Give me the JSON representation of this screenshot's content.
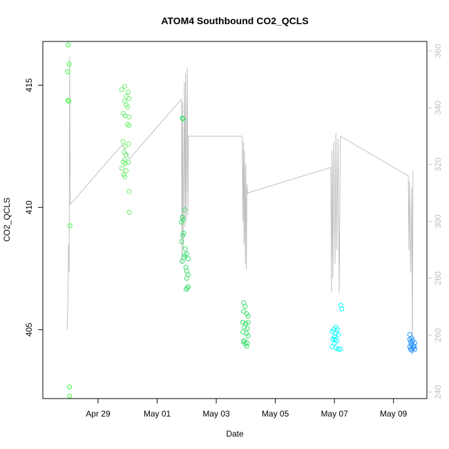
{
  "chart_data": {
    "type": "scatter",
    "title": "ATOM4 Southbound CO2_QCLS",
    "xlabel": "Date",
    "ylabel": "CO2_QCLS",
    "x_ticks": [
      {
        "day": 29.0,
        "label": "Apr 29"
      },
      {
        "day": 31.0,
        "label": "May 01"
      },
      {
        "day": 33.0,
        "label": "May 03"
      },
      {
        "day": 35.0,
        "label": "May 05"
      },
      {
        "day": 37.0,
        "label": "May 07"
      },
      {
        "day": 39.0,
        "label": "May 09"
      }
    ],
    "xlim": [
      27.13,
      40.13
    ],
    "ylim": [
      402.18,
      416.79
    ],
    "y_ticks": [
      405,
      410,
      415
    ],
    "y2lim": [
      237.7,
      363.3
    ],
    "y2_ticks": [
      240,
      260,
      280,
      300,
      320,
      340,
      360
    ],
    "colors": {
      "points_1": "#33ff33",
      "points_2": "#66ee66",
      "points_3": "#33dd66",
      "points_4": "#00ffff",
      "points_5": "#1e90ff",
      "line": "#bfbfbf",
      "right_axis": "#bfbfbf"
    },
    "point_groups": [
      {
        "color": "#33ff33",
        "points": [
          [
            27.99,
            416.65
          ],
          [
            28.02,
            415.86
          ],
          [
            27.97,
            415.55
          ],
          [
            27.98,
            414.38
          ],
          [
            28.01,
            414.35
          ],
          [
            28.05,
            409.25
          ],
          [
            28.03,
            402.65
          ],
          [
            28.04,
            402.28
          ]
        ]
      },
      {
        "color": "#66ee66",
        "points": [
          [
            29.8,
            414.82
          ],
          [
            29.9,
            414.95
          ],
          [
            30.02,
            414.72
          ],
          [
            29.95,
            414.55
          ],
          [
            30.05,
            414.45
          ],
          [
            29.9,
            414.35
          ],
          [
            29.95,
            414.2
          ],
          [
            30.0,
            414.1
          ],
          [
            29.85,
            413.85
          ],
          [
            29.92,
            413.75
          ],
          [
            30.05,
            413.7
          ],
          [
            30.0,
            413.4
          ],
          [
            30.05,
            413.35
          ],
          [
            29.85,
            412.7
          ],
          [
            29.92,
            412.5
          ],
          [
            30.03,
            412.6
          ],
          [
            29.88,
            412.25
          ],
          [
            29.95,
            412.15
          ],
          [
            29.9,
            411.95
          ],
          [
            29.85,
            411.85
          ],
          [
            29.92,
            411.8
          ],
          [
            29.8,
            411.6
          ],
          [
            29.95,
            411.5
          ],
          [
            29.87,
            411.35
          ],
          [
            29.9,
            411.25
          ],
          [
            30.05,
            410.65
          ],
          [
            30.05,
            409.8
          ],
          [
            30.02,
            411.85
          ]
        ]
      },
      {
        "color": "#33dd66",
        "points": [
          [
            31.85,
            413.65
          ],
          [
            31.88,
            413.62
          ],
          [
            31.93,
            409.9
          ],
          [
            31.85,
            409.6
          ],
          [
            31.88,
            409.5
          ],
          [
            31.82,
            409.4
          ],
          [
            31.9,
            408.95
          ],
          [
            31.87,
            408.85
          ],
          [
            31.83,
            408.6
          ],
          [
            31.95,
            408.3
          ],
          [
            32.0,
            408.1
          ],
          [
            31.93,
            408.05
          ],
          [
            31.9,
            407.95
          ],
          [
            32.05,
            407.9
          ],
          [
            31.85,
            407.8
          ],
          [
            31.97,
            407.55
          ],
          [
            32.0,
            407.4
          ],
          [
            32.05,
            407.25
          ],
          [
            32.0,
            407.1
          ],
          [
            32.05,
            406.75
          ],
          [
            32.02,
            406.7
          ],
          [
            31.98,
            406.65
          ]
        ]
      },
      {
        "color": "#33dd66",
        "points": [
          [
            33.93,
            406.1
          ],
          [
            33.98,
            405.95
          ],
          [
            33.93,
            405.75
          ],
          [
            34.03,
            405.65
          ],
          [
            34.08,
            405.55
          ],
          [
            33.9,
            405.3
          ],
          [
            34.0,
            405.25
          ],
          [
            34.08,
            405.3
          ],
          [
            33.95,
            405.1
          ],
          [
            34.05,
            405.05
          ],
          [
            33.9,
            404.9
          ],
          [
            34.02,
            404.85
          ],
          [
            34.08,
            404.75
          ],
          [
            33.95,
            404.55
          ],
          [
            33.92,
            404.5
          ],
          [
            34.05,
            404.45
          ],
          [
            33.98,
            404.42
          ],
          [
            34.03,
            404.32
          ]
        ]
      },
      {
        "color": "#00ffff",
        "points": [
          [
            37.05,
            405.1
          ],
          [
            36.98,
            405.0
          ],
          [
            37.1,
            405.0
          ],
          [
            36.92,
            404.92
          ],
          [
            37.05,
            404.85
          ],
          [
            37.13,
            404.8
          ],
          [
            37.0,
            404.7
          ],
          [
            36.95,
            404.62
          ],
          [
            37.08,
            404.55
          ],
          [
            37.0,
            404.45
          ],
          [
            36.93,
            404.3
          ],
          [
            37.05,
            404.25
          ],
          [
            37.13,
            404.2
          ],
          [
            37.2,
            404.2
          ],
          [
            37.02,
            404.6
          ],
          [
            37.22,
            406.0
          ],
          [
            37.25,
            405.85
          ]
        ]
      },
      {
        "color": "#1e90ff",
        "points": [
          [
            39.55,
            404.8
          ],
          [
            39.62,
            404.65
          ],
          [
            39.55,
            404.6
          ],
          [
            39.65,
            404.55
          ],
          [
            39.58,
            404.5
          ],
          [
            39.72,
            404.45
          ],
          [
            39.6,
            404.4
          ],
          [
            39.68,
            404.35
          ],
          [
            39.55,
            404.3
          ],
          [
            39.65,
            404.25
          ],
          [
            39.7,
            404.3
          ],
          [
            39.58,
            404.2
          ],
          [
            39.62,
            404.15
          ],
          [
            39.72,
            404.2
          ]
        ]
      }
    ],
    "line_series": {
      "axis": "right",
      "description_keyframes": [
        [
          27.95,
          262
        ],
        [
          27.98,
          272
        ],
        [
          28.0,
          292
        ],
        [
          28.02,
          282
        ],
        [
          28.04,
          358
        ],
        [
          28.06,
          306
        ],
        [
          29.82,
          327
        ],
        [
          30.06,
          322
        ],
        [
          31.82,
          343
        ],
        [
          31.84,
          285
        ],
        [
          31.86,
          342
        ],
        [
          31.88,
          290
        ],
        [
          31.92,
          349
        ],
        [
          31.94,
          298
        ],
        [
          31.96,
          352
        ],
        [
          31.98,
          300
        ],
        [
          32.02,
          354
        ],
        [
          32.04,
          302
        ],
        [
          32.06,
          330
        ],
        [
          33.88,
          330
        ],
        [
          33.9,
          300
        ],
        [
          33.92,
          328
        ],
        [
          33.94,
          292
        ],
        [
          33.96,
          325
        ],
        [
          33.98,
          285
        ],
        [
          34.0,
          320
        ],
        [
          34.02,
          283
        ],
        [
          34.04,
          313
        ],
        [
          34.06,
          310
        ],
        [
          36.88,
          319
        ],
        [
          36.9,
          275
        ],
        [
          36.92,
          325
        ],
        [
          36.95,
          280
        ],
        [
          36.98,
          328
        ],
        [
          37.02,
          285
        ],
        [
          37.05,
          331
        ],
        [
          37.08,
          290
        ],
        [
          37.12,
          329
        ],
        [
          37.16,
          275
        ],
        [
          37.2,
          330
        ],
        [
          39.5,
          316
        ],
        [
          39.52,
          290
        ],
        [
          39.54,
          314
        ],
        [
          39.58,
          282
        ],
        [
          39.62,
          312
        ],
        [
          39.64,
          253
        ],
        [
          39.66,
          318
        ]
      ]
    }
  }
}
